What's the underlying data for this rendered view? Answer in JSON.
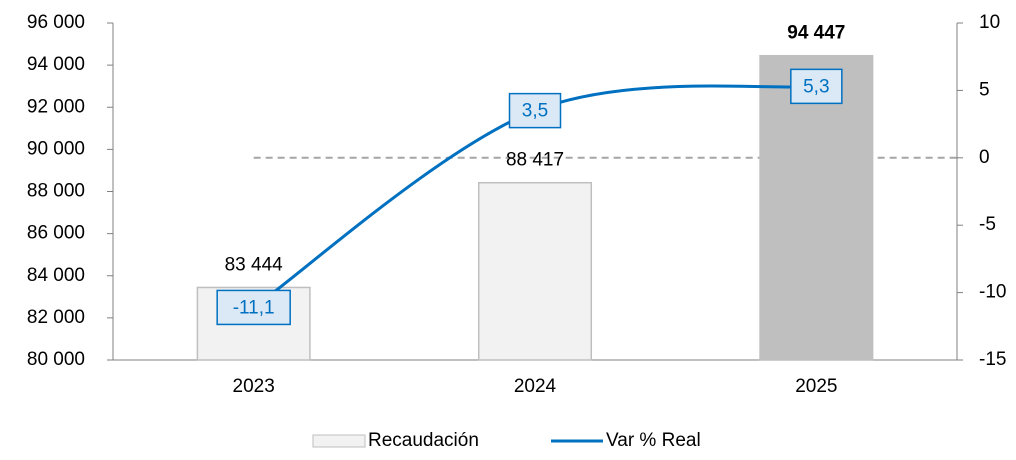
{
  "chart_data": {
    "type": "bar_line",
    "categories": [
      "2023",
      "2024",
      "2025"
    ],
    "series": [
      {
        "name": "Recaudación",
        "type": "bar",
        "colors": [
          "#f2f2f2",
          "#f2f2f2",
          "#bfbfbf"
        ],
        "stroke": "#bfbfbf",
        "values": [
          83444,
          88417,
          94447
        ],
        "value_labels": [
          "83 444",
          "88 417",
          "94 447"
        ]
      },
      {
        "name": "Var % Real",
        "type": "line",
        "axis": "y2",
        "color": "#0070c0",
        "values": [
          -11.1,
          3.5,
          5.3
        ],
        "value_labels": [
          "-11,1",
          "3,5",
          "5,3"
        ]
      }
    ],
    "ylim": [
      80000,
      96000
    ],
    "yticks": [
      {
        "value": 80000,
        "label": "80 000"
      },
      {
        "value": 82000,
        "label": "82 000"
      },
      {
        "value": 84000,
        "label": "84 000"
      },
      {
        "value": 86000,
        "label": "86 000"
      },
      {
        "value": 88000,
        "label": "88 000"
      },
      {
        "value": 90000,
        "label": "90 000"
      },
      {
        "value": 92000,
        "label": "92 000"
      },
      {
        "value": 94000,
        "label": "94 000"
      },
      {
        "value": 96000,
        "label": "96 000"
      }
    ],
    "y2lim": [
      -15,
      10
    ],
    "y2ticks": [
      -15,
      -10,
      -5,
      0,
      5,
      10
    ],
    "reference_line": {
      "axis": "y2",
      "value": 0
    },
    "legend": "bottom"
  }
}
